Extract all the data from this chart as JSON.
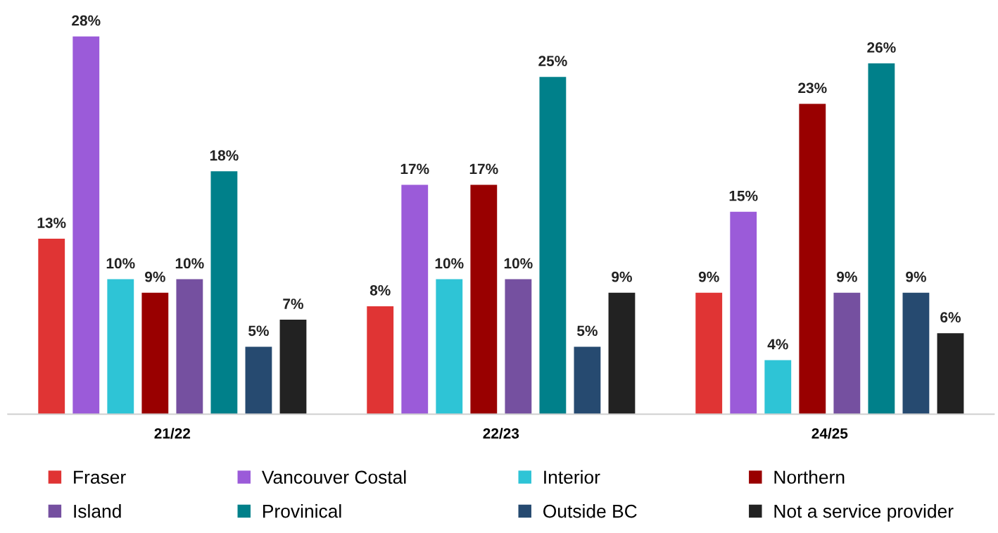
{
  "chart_data": {
    "type": "bar",
    "categories": [
      "21/22",
      "22/23",
      "24/25"
    ],
    "series": [
      {
        "name": "Fraser",
        "color": "#e03434",
        "values": [
          13,
          8,
          9
        ],
        "value_labels": [
          "13%",
          "8%",
          "9%"
        ]
      },
      {
        "name": "Vancouver Costal",
        "color": "#9b5bd9",
        "values": [
          28,
          17,
          15
        ],
        "value_labels": [
          "28%",
          "17%",
          "15%"
        ]
      },
      {
        "name": "Interior",
        "color": "#2ec4d6",
        "values": [
          10,
          10,
          4
        ],
        "value_labels": [
          "10%",
          "10%",
          "4%"
        ]
      },
      {
        "name": "Northern",
        "color": "#990000",
        "values": [
          9,
          17,
          23
        ],
        "value_labels": [
          "9%",
          "17%",
          "23%"
        ]
      },
      {
        "name": "Island",
        "color": "#7550a0",
        "values": [
          10,
          10,
          9
        ],
        "value_labels": [
          "10%",
          "10%",
          "9%"
        ]
      },
      {
        "name": "Provinical",
        "color": "#00808a",
        "values": [
          18,
          25,
          26
        ],
        "value_labels": [
          "18%",
          "25%",
          "26%"
        ]
      },
      {
        "name": "Outside BC",
        "color": "#264a70",
        "values": [
          5,
          5,
          9
        ],
        "value_labels": [
          "5%",
          "5%",
          "9%"
        ]
      },
      {
        "name": "Not a service provider",
        "color": "#222222",
        "values": [
          7,
          9,
          6
        ],
        "value_labels": [
          "7%",
          "9%",
          "6%"
        ]
      }
    ],
    "grid": false,
    "legend": "bottom",
    "tick_labels": "x"
  }
}
